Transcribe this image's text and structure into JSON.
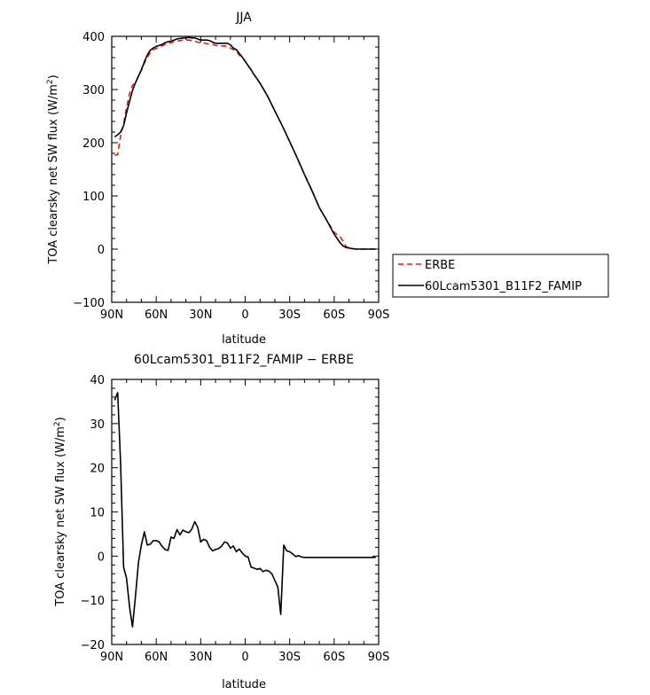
{
  "chart_data": [
    {
      "type": "line",
      "title": "JJA",
      "xlabel": "latitude",
      "ylabel_main": "TOA clearsky net SW flux (W/m",
      "ylabel_sup": "2",
      "ylabel_end": ")",
      "xlim": [
        90,
        -90
      ],
      "ylim": [
        -100,
        400
      ],
      "x_ticks": [
        {
          "value": 90,
          "label": "90N"
        },
        {
          "value": 60,
          "label": "60N"
        },
        {
          "value": 30,
          "label": "30N"
        },
        {
          "value": 0,
          "label": "0"
        },
        {
          "value": -30,
          "label": "30S"
        },
        {
          "value": -60,
          "label": "60S"
        },
        {
          "value": -90,
          "label": "90S"
        }
      ],
      "y_ticks": [
        {
          "value": 400,
          "label": "400"
        },
        {
          "value": 300,
          "label": "300"
        },
        {
          "value": 200,
          "label": "200"
        },
        {
          "value": 100,
          "label": "100"
        },
        {
          "value": 0,
          "label": "0"
        },
        {
          "value": -100,
          "label": "−100"
        }
      ],
      "legend": {
        "placement": "right"
      },
      "series": [
        {
          "name": "ERBE",
          "color": "#e31a1c",
          "style": "dashed",
          "x": [
            88,
            86,
            84,
            82,
            80,
            78,
            76,
            74,
            72,
            70,
            68,
            66,
            64,
            62,
            60,
            58,
            56,
            54,
            52,
            50,
            48,
            46,
            44,
            42,
            40,
            38,
            36,
            34,
            32,
            30,
            28,
            26,
            24,
            22,
            20,
            18,
            16,
            14,
            12,
            10,
            8,
            6,
            4,
            2,
            0,
            -2,
            -4,
            -6,
            -8,
            -10,
            -15,
            -20,
            -25,
            -30,
            -35,
            -40,
            -45,
            -50,
            -55,
            -60,
            -62,
            -64,
            -66,
            -68,
            -70,
            -72,
            -75,
            -80,
            -85,
            -88
          ],
          "y": [
            176,
            178,
            213,
            236,
            266,
            292,
            308,
            313,
            325,
            336,
            350,
            360,
            370,
            375,
            377,
            380,
            382,
            385,
            387,
            388,
            390,
            391,
            392,
            393,
            393,
            393,
            392,
            391,
            389,
            388,
            388,
            386,
            386,
            385,
            383,
            382,
            382,
            382,
            381,
            378,
            375,
            372,
            365,
            360,
            353,
            345,
            337,
            328,
            320,
            312,
            288,
            260,
            232,
            202,
            172,
            140,
            110,
            78,
            54,
            32,
            27,
            23,
            15,
            5,
            2,
            1,
            0,
            0,
            0,
            0
          ]
        },
        {
          "name": "60Lcam5301_B11F2_FAMIP",
          "color": "#000000",
          "style": "solid",
          "x": [
            88,
            86,
            84,
            82,
            80,
            78,
            76,
            74,
            72,
            70,
            68,
            66,
            64,
            62,
            60,
            58,
            56,
            54,
            52,
            50,
            48,
            46,
            44,
            42,
            40,
            38,
            36,
            34,
            32,
            30,
            28,
            26,
            24,
            22,
            20,
            18,
            16,
            14,
            12,
            10,
            8,
            6,
            4,
            2,
            0,
            -2,
            -4,
            -6,
            -8,
            -10,
            -15,
            -20,
            -25,
            -30,
            -35,
            -40,
            -45,
            -50,
            -55,
            -60,
            -62,
            -64,
            -66,
            -68,
            -70,
            -72,
            -75,
            -80,
            -85,
            -88
          ],
          "y": [
            211,
            215,
            220,
            232,
            256,
            278,
            298,
            313,
            325,
            337,
            352,
            365,
            374,
            378,
            381,
            383,
            385,
            388,
            390,
            391,
            393,
            395,
            396,
            397,
            397,
            398,
            397,
            397,
            395,
            393,
            393,
            393,
            392,
            389,
            387,
            387,
            387,
            387,
            387,
            384,
            378,
            375,
            368,
            361,
            353,
            345,
            337,
            328,
            320,
            312,
            288,
            260,
            232,
            202,
            172,
            140,
            110,
            78,
            54,
            28,
            20,
            12,
            6,
            3,
            2,
            1,
            0,
            0,
            0,
            0
          ]
        }
      ]
    },
    {
      "type": "line",
      "title": "60Lcam5301_B11F2_FAMIP − ERBE",
      "xlabel": "latitude",
      "ylabel_main": "TOA clearsky net SW flux (W/m",
      "ylabel_sup": "2",
      "ylabel_end": ")",
      "xlim": [
        90,
        -90
      ],
      "ylim": [
        -20,
        40
      ],
      "x_ticks": [
        {
          "value": 90,
          "label": "90N"
        },
        {
          "value": 60,
          "label": "60N"
        },
        {
          "value": 30,
          "label": "30N"
        },
        {
          "value": 0,
          "label": "0"
        },
        {
          "value": -30,
          "label": "30S"
        },
        {
          "value": -60,
          "label": "60S"
        },
        {
          "value": -90,
          "label": "90S"
        }
      ],
      "y_ticks": [
        {
          "value": 40,
          "label": "40"
        },
        {
          "value": 30,
          "label": "30"
        },
        {
          "value": 20,
          "label": "20"
        },
        {
          "value": 10,
          "label": "10"
        },
        {
          "value": 0,
          "label": "0"
        },
        {
          "value": -10,
          "label": "−10"
        },
        {
          "value": -20,
          "label": "−20"
        }
      ],
      "series": [
        {
          "color": "#000000",
          "style": "solid",
          "x": [
            88,
            86,
            84,
            82,
            80,
            78,
            76,
            74,
            72,
            70,
            68,
            66,
            64,
            62,
            60,
            58,
            56,
            54,
            52,
            50,
            48,
            46,
            44,
            42,
            40,
            38,
            36,
            34,
            32,
            30,
            28,
            26,
            24,
            22,
            20,
            18,
            16,
            14,
            12,
            10,
            8,
            6,
            4,
            2,
            0,
            -2,
            -4,
            -6,
            -8,
            -10,
            -12,
            -14,
            -16,
            -18,
            -20,
            -22,
            -24,
            -26,
            -28,
            -30,
            -32,
            -34,
            -36,
            -38,
            -40,
            -42,
            -44,
            -46,
            -48,
            -50,
            -52,
            -54,
            -56,
            -58,
            -60,
            -62,
            -64,
            -66,
            -68,
            -70,
            -72,
            -74,
            -76,
            -78,
            -80,
            -82,
            -84,
            -86,
            -88
          ],
          "y": [
            35.3,
            37,
            21,
            -2.5,
            -5,
            -11.5,
            -16,
            -9,
            -1.5,
            2.5,
            5.5,
            2.5,
            2.7,
            3.5,
            3.5,
            3.2,
            2.2,
            1.5,
            1.3,
            4.3,
            4.0,
            6.0,
            4.8,
            5.9,
            5.5,
            5.3,
            6.1,
            7.8,
            6.5,
            3.2,
            3.8,
            3.5,
            2.0,
            1.2,
            1.5,
            1.7,
            2.2,
            3.2,
            3.0,
            1.8,
            2.3,
            1.0,
            1.6,
            0.7,
            0.0,
            -0.2,
            -2.5,
            -2.7,
            -3.0,
            -2.8,
            -3.5,
            -3.2,
            -3.4,
            -4.0,
            -5.5,
            -7.0,
            -13.2,
            2.5,
            1.2,
            1.0,
            0.5,
            -0.1,
            0.1,
            -0.2,
            -0.3,
            -0.3,
            -0.3,
            -0.3,
            -0.3,
            -0.3,
            -0.3,
            -0.3,
            -0.3,
            -0.3,
            -0.3,
            -0.3,
            -0.3,
            -0.3,
            -0.3,
            -0.3,
            -0.3,
            -0.3,
            -0.3,
            -0.3,
            -0.3,
            -0.3,
            -0.3,
            -0.3,
            -0.3
          ]
        }
      ]
    }
  ]
}
